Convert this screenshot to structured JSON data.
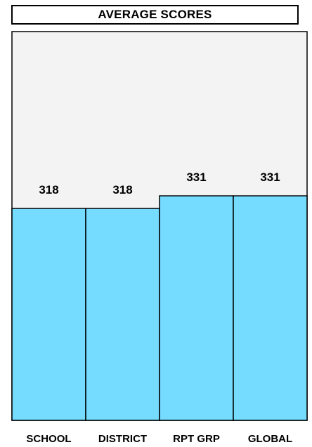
{
  "colors": {
    "plot_background": "#f3f3f3",
    "bar_fill": "#75dcff",
    "border": "#000000"
  },
  "chart_data": {
    "type": "bar",
    "title": "AVERAGE SCORES",
    "xlabel": "",
    "ylabel": "",
    "categories": [
      "SCHOOL",
      "DISTRICT",
      "RPT GRP",
      "GLOBAL"
    ],
    "values": [
      318,
      318,
      331,
      331
    ],
    "value_labels": [
      "318",
      "318",
      "331",
      "331"
    ],
    "ylim": [
      100,
      500
    ],
    "grid": false,
    "legend": "none"
  }
}
